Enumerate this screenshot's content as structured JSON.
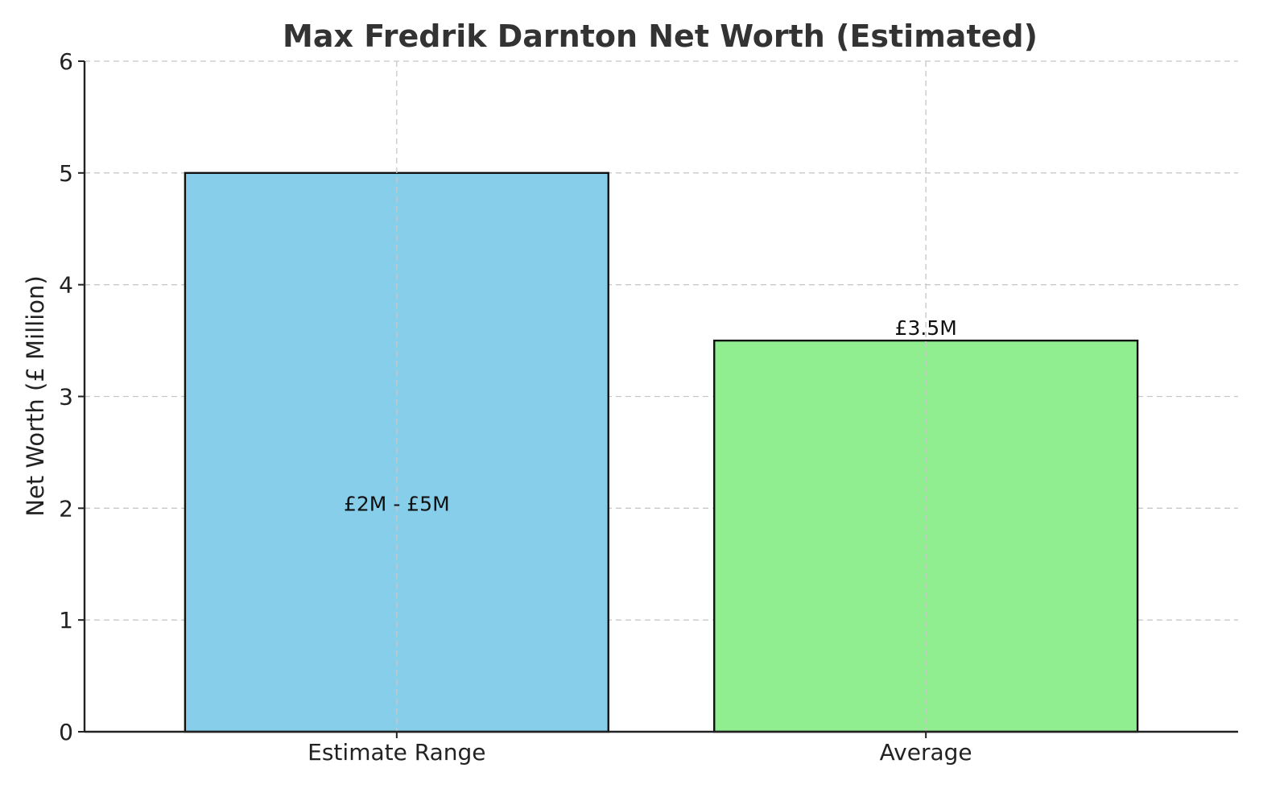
{
  "chart_data": {
    "type": "bar",
    "title": "Max Fredrik Darnton Net Worth (Estimated)",
    "xlabel": "",
    "ylabel": "Net Worth (£ Million)",
    "categories": [
      "Estimate Range",
      "Average"
    ],
    "values": [
      5,
      3.5
    ],
    "data_labels": [
      "£2M - £5M",
      "£3.5M"
    ],
    "colors": [
      "#87ceeb",
      "#90ee90"
    ],
    "ylim": [
      0,
      6
    ],
    "yticks": [
      0,
      1,
      2,
      3,
      4,
      5,
      6
    ],
    "grid": true,
    "legend": "none"
  }
}
